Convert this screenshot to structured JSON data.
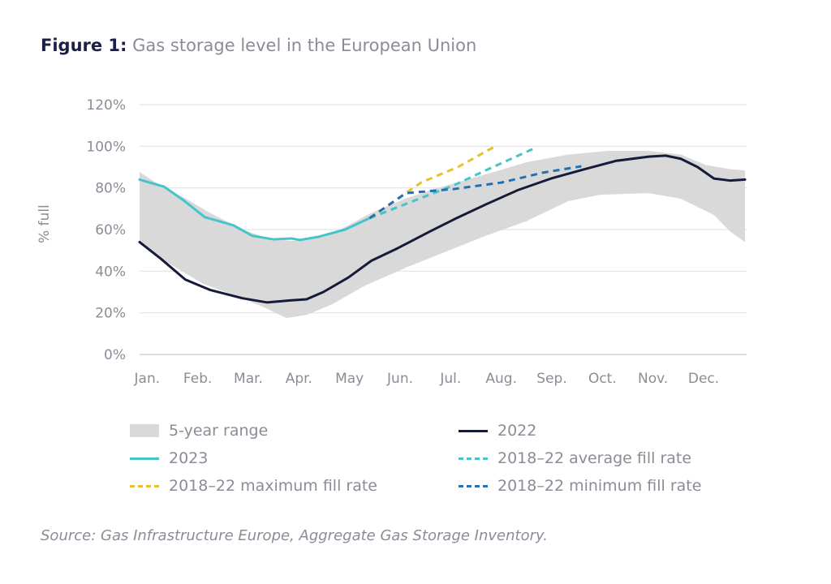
{
  "title": {
    "prefix": "Figure 1:",
    "text": "Gas storage level in the European Union"
  },
  "source": "Source: Gas Infrastructure Europe, Aggregate Gas Storage Inventory.",
  "chart_data": {
    "type": "line",
    "ylabel": "% full",
    "xlabel": "",
    "ylim": [
      0,
      120
    ],
    "yticks": [
      "0%",
      "20%",
      "40%",
      "60%",
      "80%",
      "100%",
      "120%"
    ],
    "ytick_values": [
      0,
      20,
      40,
      60,
      80,
      100,
      120
    ],
    "categories": [
      "Jan.",
      "Feb.",
      "Mar.",
      "Apr.",
      "May",
      "Jun.",
      "Jul.",
      "Aug.",
      "Sep.",
      "Oct.",
      "Nov.",
      "Dec."
    ],
    "grid": "horizontal",
    "legend_placement": "bottom",
    "band": {
      "name": "5-year range",
      "color": "#d9d9d9",
      "upper": [
        [
          "01-01",
          87.6
        ],
        [
          "01-14",
          81
        ],
        [
          "01-29",
          75
        ],
        [
          "02-12",
          68
        ],
        [
          "03-02",
          60
        ],
        [
          "03-17",
          56
        ],
        [
          "04-01",
          54.5
        ],
        [
          "04-10",
          55
        ],
        [
          "04-30",
          60
        ],
        [
          "05-19",
          68
        ],
        [
          "06-09",
          75
        ],
        [
          "06-28",
          80
        ],
        [
          "07-27",
          86.5
        ],
        [
          "08-21",
          92.3
        ],
        [
          "09-15",
          96
        ],
        [
          "10-09",
          97.8
        ],
        [
          "11-03",
          97.8
        ],
        [
          "11-22",
          96
        ],
        [
          "12-07",
          91
        ],
        [
          "12-22",
          89
        ],
        [
          "12-31",
          88.4
        ]
      ],
      "lower": [
        [
          "01-01",
          54
        ],
        [
          "01-14",
          46
        ],
        [
          "02-08",
          34
        ],
        [
          "03-02",
          27
        ],
        [
          "03-17",
          22
        ],
        [
          "03-29",
          17.5
        ],
        [
          "04-10",
          19
        ],
        [
          "04-25",
          24
        ],
        [
          "05-15",
          33
        ],
        [
          "06-09",
          41.7
        ],
        [
          "07-03",
          49.5
        ],
        [
          "07-27",
          57
        ],
        [
          "08-21",
          64
        ],
        [
          "09-15",
          73.6
        ],
        [
          "10-04",
          76.7
        ],
        [
          "11-03",
          77.5
        ],
        [
          "11-22",
          74.8
        ],
        [
          "12-12",
          67
        ],
        [
          "12-22",
          59
        ],
        [
          "12-31",
          54
        ]
      ]
    },
    "series": [
      {
        "name": "2022",
        "color": "#161b3a",
        "dash": false,
        "points": [
          [
            "01-01",
            54
          ],
          [
            "01-14",
            46
          ],
          [
            "01-29",
            36
          ],
          [
            "02-12",
            31
          ],
          [
            "03-02",
            27
          ],
          [
            "03-17",
            25
          ],
          [
            "04-01",
            26
          ],
          [
            "04-10",
            26.5
          ],
          [
            "04-20",
            30
          ],
          [
            "05-05",
            37
          ],
          [
            "05-19",
            45
          ],
          [
            "06-04",
            51
          ],
          [
            "06-23",
            59
          ],
          [
            "07-08",
            65
          ],
          [
            "07-27",
            72
          ],
          [
            "08-16",
            79
          ],
          [
            "09-05",
            84.5
          ],
          [
            "09-25",
            89
          ],
          [
            "10-14",
            93
          ],
          [
            "11-03",
            95
          ],
          [
            "11-13",
            95.5
          ],
          [
            "11-22",
            94
          ],
          [
            "12-02",
            90
          ],
          [
            "12-12",
            84.5
          ],
          [
            "12-22",
            83.5
          ],
          [
            "12-31",
            84
          ]
        ]
      },
      {
        "name": "2023",
        "color": "#45c4c9",
        "dash": false,
        "points": [
          [
            "01-01",
            84
          ],
          [
            "01-16",
            80.6
          ],
          [
            "01-28",
            74
          ],
          [
            "02-09",
            66
          ],
          [
            "02-17",
            64
          ],
          [
            "02-25",
            62
          ],
          [
            "03-08",
            57
          ],
          [
            "03-21",
            55.3
          ],
          [
            "04-01",
            55.7
          ],
          [
            "04-06",
            55
          ],
          [
            "04-17",
            56.5
          ],
          [
            "05-03",
            60
          ],
          [
            "05-18",
            65.5
          ]
        ]
      },
      {
        "name": "2018–22 average fill rate",
        "color": "#45c4c9",
        "dash": true,
        "points": [
          [
            "05-18",
            65.5
          ],
          [
            "07-08",
            81.4
          ],
          [
            "07-27",
            88.4
          ],
          [
            "08-27",
            99.4
          ]
        ]
      },
      {
        "name": "2018–22 maximum fill rate",
        "color": "#e8c02a",
        "dash": true,
        "points": [
          [
            "05-18",
            65.5
          ],
          [
            "06-18",
            82.6
          ],
          [
            "07-10",
            90
          ],
          [
            "08-02",
            100
          ]
        ]
      },
      {
        "name": "2018–22 minimum fill rate",
        "color": "#2570b0",
        "dash": true,
        "points": [
          [
            "05-18",
            65.5
          ],
          [
            "06-09",
            77.5
          ],
          [
            "07-08",
            79.5
          ],
          [
            "08-06",
            82.6
          ],
          [
            "08-31",
            87.3
          ],
          [
            "09-23",
            90.4
          ]
        ]
      }
    ]
  }
}
